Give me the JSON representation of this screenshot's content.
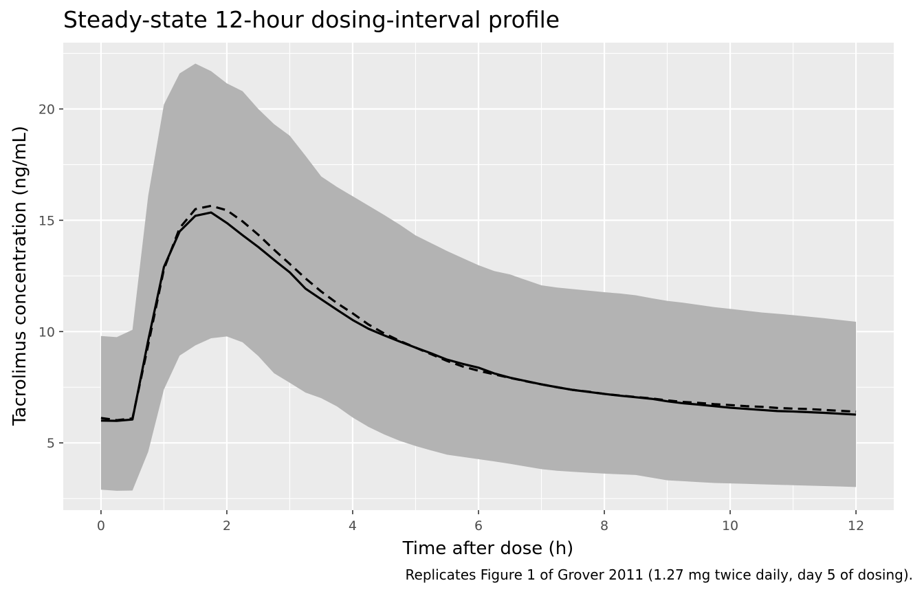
{
  "chart_data": {
    "type": "line",
    "title": "Steady-state 12-hour dosing-interval profile",
    "xlabel": "Time after dose (h)",
    "ylabel": "Tacrolimus concentration (ng/mL)",
    "caption": "Replicates Figure 1 of Grover 2011 (1.27 mg twice daily, day 5 of dosing).",
    "xlim": [
      -0.6,
      12.6
    ],
    "ylim": [
      1.98,
      22.98
    ],
    "x_ticks": [
      0,
      2,
      4,
      6,
      8,
      10,
      12
    ],
    "x_tick_labels": [
      "0",
      "2",
      "4",
      "6",
      "8",
      "10",
      "12"
    ],
    "y_ticks": [
      5,
      10,
      15,
      20
    ],
    "y_tick_labels": [
      "5",
      "10",
      "15",
      "20"
    ],
    "grid": true,
    "band_color": "#b3b3b3",
    "line_color": "#000000",
    "panel_color": "#ebebeb",
    "series": [
      {
        "style": "solid",
        "x": [
          0,
          0.25,
          0.5,
          0.75,
          1,
          1.25,
          1.5,
          1.75,
          2,
          2.25,
          2.5,
          2.75,
          3,
          3.25,
          3.5,
          3.75,
          4,
          4.25,
          4.5,
          4.75,
          5,
          5.25,
          5.5,
          5.75,
          6,
          6.25,
          6.5,
          6.75,
          7,
          7.25,
          7.5,
          7.75,
          8,
          8.25,
          8.5,
          8.75,
          9,
          9.25,
          9.5,
          9.75,
          10,
          10.25,
          10.5,
          10.75,
          11,
          11.25,
          11.5,
          11.75,
          12
        ],
        "y": [
          6.0,
          5.99,
          6.05,
          9.6,
          12.9,
          14.5,
          15.2,
          15.35,
          14.88,
          14.33,
          13.8,
          13.22,
          12.66,
          11.93,
          11.45,
          10.98,
          10.52,
          10.13,
          9.83,
          9.55,
          9.28,
          9.02,
          8.74,
          8.55,
          8.38,
          8.12,
          7.93,
          7.78,
          7.63,
          7.5,
          7.38,
          7.29,
          7.2,
          7.12,
          7.05,
          6.98,
          6.87,
          6.78,
          6.72,
          6.65,
          6.58,
          6.53,
          6.48,
          6.43,
          6.41,
          6.38,
          6.35,
          6.31,
          6.27
        ]
      },
      {
        "style": "dashed",
        "x": [
          0,
          0.25,
          0.5,
          0.75,
          1,
          1.25,
          1.5,
          1.75,
          2,
          2.25,
          2.5,
          2.75,
          3,
          3.25,
          3.5,
          3.75,
          4,
          4.25,
          4.5,
          4.75,
          5,
          5.25,
          5.5,
          5.75,
          6,
          6.25,
          6.5,
          6.75,
          7,
          7.25,
          7.5,
          7.75,
          8,
          8.25,
          8.5,
          8.75,
          9,
          9.25,
          9.5,
          9.75,
          10,
          10.25,
          10.5,
          10.75,
          11,
          11.25,
          11.5,
          11.75,
          12
        ],
        "y": [
          6.12,
          6.02,
          6.1,
          9.4,
          12.8,
          14.65,
          15.5,
          15.65,
          15.45,
          14.95,
          14.35,
          13.68,
          13.04,
          12.39,
          11.8,
          11.28,
          10.82,
          10.32,
          9.92,
          9.58,
          9.28,
          8.98,
          8.68,
          8.43,
          8.24,
          8.08,
          7.92,
          7.77,
          7.63,
          7.5,
          7.38,
          7.3,
          7.2,
          7.13,
          7.06,
          7.0,
          6.91,
          6.84,
          6.8,
          6.74,
          6.7,
          6.65,
          6.62,
          6.57,
          6.54,
          6.52,
          6.48,
          6.44,
          6.4
        ]
      }
    ],
    "band": {
      "x": [
        0,
        0.25,
        0.5,
        0.75,
        1,
        1.25,
        1.5,
        1.75,
        2,
        2.25,
        2.5,
        2.75,
        3,
        3.25,
        3.5,
        3.75,
        4,
        4.25,
        4.5,
        4.75,
        5,
        5.25,
        5.5,
        5.75,
        6,
        6.25,
        6.5,
        6.75,
        7,
        7.25,
        7.5,
        7.75,
        8,
        8.25,
        8.5,
        8.75,
        9,
        9.25,
        9.5,
        9.75,
        10,
        10.25,
        10.5,
        10.75,
        11,
        11.25,
        11.5,
        11.75,
        12
      ],
      "upper": [
        9.8,
        9.75,
        10.08,
        16.1,
        20.2,
        21.6,
        22.04,
        21.7,
        21.15,
        20.8,
        20.0,
        19.32,
        18.8,
        17.9,
        16.97,
        16.5,
        16.08,
        15.66,
        15.24,
        14.8,
        14.32,
        13.97,
        13.62,
        13.3,
        12.98,
        12.72,
        12.57,
        12.32,
        12.08,
        11.98,
        11.91,
        11.84,
        11.77,
        11.71,
        11.63,
        11.5,
        11.38,
        11.3,
        11.2,
        11.1,
        11.02,
        10.94,
        10.86,
        10.8,
        10.74,
        10.67,
        10.6,
        10.52,
        10.44
      ],
      "lower": [
        2.9,
        2.85,
        2.86,
        4.6,
        7.4,
        8.92,
        9.38,
        9.7,
        9.78,
        9.52,
        8.9,
        8.13,
        7.7,
        7.26,
        7.01,
        6.64,
        6.14,
        5.72,
        5.38,
        5.09,
        4.86,
        4.66,
        4.47,
        4.37,
        4.27,
        4.17,
        4.06,
        3.94,
        3.82,
        3.75,
        3.7,
        3.66,
        3.62,
        3.59,
        3.56,
        3.44,
        3.32,
        3.28,
        3.24,
        3.2,
        3.18,
        3.16,
        3.14,
        3.12,
        3.1,
        3.08,
        3.06,
        3.04,
        3.02
      ]
    }
  }
}
